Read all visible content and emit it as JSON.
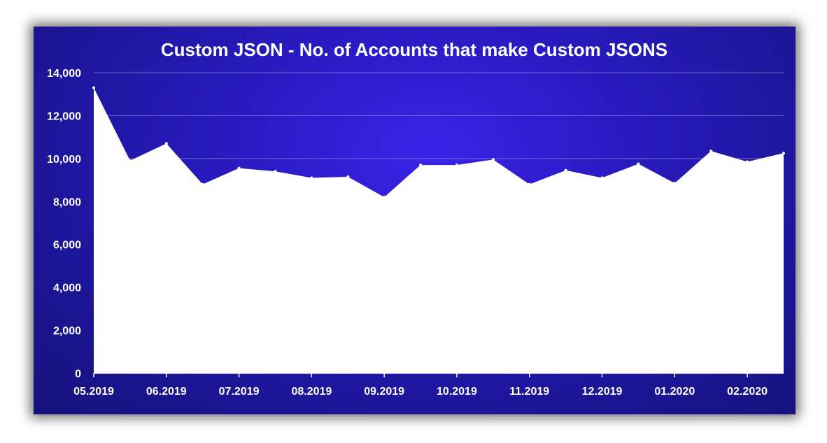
{
  "chart_data": {
    "type": "area",
    "title": "Custom JSON - No. of Accounts that make Custom JSONS",
    "xlabel": "",
    "ylabel": "",
    "ylim": [
      0,
      14000
    ],
    "yticks": [
      "0",
      "2,000",
      "4,000",
      "6,000",
      "8,000",
      "10,000",
      "12,000",
      "14,000"
    ],
    "xtick_labels": [
      "05.2019",
      "06.2019",
      "07.2019",
      "08.2019",
      "09.2019",
      "10.2019",
      "11.2019",
      "12.2019",
      "01.2020",
      "02.2020"
    ],
    "grid": true,
    "legend": "none",
    "fill_color": "#ffffff",
    "background_color": "#1f17a6",
    "series": [
      {
        "values": [
          13300,
          9900,
          10700,
          8800,
          9550,
          9400,
          9100,
          9150,
          8200,
          9700,
          9700,
          9950,
          8800,
          9450,
          9100,
          9750,
          8850,
          10350,
          9850,
          10250
        ]
      }
    ]
  }
}
